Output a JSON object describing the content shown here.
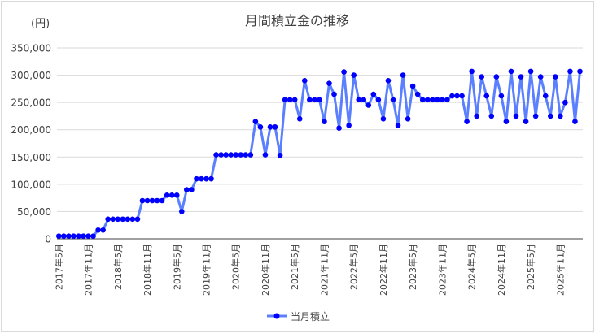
{
  "chart_data": {
    "type": "line",
    "title": "月間積立金の推移",
    "ylabel": "(円)",
    "xlabel": "",
    "ylim": [
      0,
      350000
    ],
    "yticks": [
      "0",
      "50,000",
      "100,000",
      "150,000",
      "200,000",
      "250,000",
      "300,000",
      "350,000"
    ],
    "ytick_values": [
      0,
      50000,
      100000,
      150000,
      200000,
      250000,
      300000,
      350000
    ],
    "grid": true,
    "legend": "bottom",
    "xtick_labels": [
      "2017年5月",
      "2017年11月",
      "2018年5月",
      "2018年11月",
      "2019年5月",
      "2019年11月",
      "2020年5月",
      "2020年11月",
      "2021年5月",
      "2021年11月",
      "2022年5月",
      "2022年11月",
      "2023年5月",
      "2023年11月",
      "2024年5月",
      "2024年11月",
      "2025年5月",
      "2025年11月"
    ],
    "categories": [
      "2017年5月",
      "2017年6月",
      "2017年7月",
      "2017年8月",
      "2017年9月",
      "2017年10月",
      "2017年11月",
      "2017年12月",
      "2018年1月",
      "2018年2月",
      "2018年3月",
      "2018年4月",
      "2018年5月",
      "2018年6月",
      "2018年7月",
      "2018年8月",
      "2018年9月",
      "2018年10月",
      "2018年11月",
      "2018年12月",
      "2019年1月",
      "2019年2月",
      "2019年3月",
      "2019年4月",
      "2019年5月",
      "2019年6月",
      "2019年7月",
      "2019年8月",
      "2019年9月",
      "2019年10月",
      "2019年11月",
      "2019年12月",
      "2020年1月",
      "2020年2月",
      "2020年3月",
      "2020年4月",
      "2020年5月",
      "2020年6月",
      "2020年7月",
      "2020年8月",
      "2020年9月",
      "2020年10月",
      "2020年11月",
      "2020年12月",
      "2021年1月",
      "2021年2月",
      "2021年3月",
      "2021年4月",
      "2021年5月",
      "2021年6月",
      "2021年7月",
      "2021年8月",
      "2021年9月",
      "2021年10月",
      "2021年11月",
      "2021年12月",
      "2022年1月",
      "2022年2月",
      "2022年3月",
      "2022年4月",
      "2022年5月",
      "2022年6月",
      "2022年7月",
      "2022年8月",
      "2022年9月",
      "2022年10月",
      "2022年11月",
      "2022年12月",
      "2023年1月",
      "2023年2月",
      "2023年3月",
      "2023年4月",
      "2023年5月",
      "2023年6月",
      "2023年7月",
      "2023年8月",
      "2023年9月",
      "2023年10月",
      "2023年11月",
      "2023年12月",
      "2024年1月",
      "2024年2月",
      "2024年3月",
      "2024年4月",
      "2024年5月",
      "2024年6月",
      "2024年7月",
      "2024年8月",
      "2024年9月",
      "2024年10月",
      "2024年11月",
      "2024年12月",
      "2025年1月",
      "2025年2月",
      "2025年3月",
      "2025年4月",
      "2025年5月",
      "2025年6月",
      "2025年7月",
      "2025年8月",
      "2025年9月",
      "2025年10月",
      "2025年11月",
      "2025年12月",
      "2026年1月",
      "2026年2月",
      "2026年3月"
    ],
    "series": [
      {
        "name": "当月積立",
        "line_color": "#5b80ff",
        "marker_color": "#0000ff",
        "values": [
          5000,
          5000,
          5000,
          5000,
          5000,
          5000,
          5000,
          5000,
          16000,
          16000,
          36000,
          36000,
          36000,
          36000,
          36000,
          36000,
          36000,
          70000,
          70000,
          70000,
          70000,
          70000,
          80000,
          80000,
          80000,
          50000,
          90000,
          90000,
          110000,
          110000,
          110000,
          110000,
          154000,
          154000,
          154000,
          154000,
          154000,
          154000,
          154000,
          154000,
          215000,
          205000,
          154000,
          205000,
          205000,
          153000,
          255000,
          255000,
          255000,
          220000,
          290000,
          255000,
          255000,
          255000,
          215000,
          285000,
          265000,
          203000,
          306000,
          208000,
          300000,
          255000,
          255000,
          245000,
          265000,
          255000,
          220000,
          290000,
          255000,
          208000,
          300000,
          220000,
          280000,
          265000,
          255000,
          255000,
          255000,
          255000,
          255000,
          255000,
          262000,
          262000,
          262000,
          215000,
          307000,
          225000,
          297000,
          262000,
          225000,
          297000,
          262000,
          215000,
          307000,
          225000,
          297000,
          215000,
          307000,
          225000,
          297000,
          262000,
          225000,
          297000,
          225000,
          250000,
          307000,
          215000,
          307000
        ]
      }
    ]
  }
}
